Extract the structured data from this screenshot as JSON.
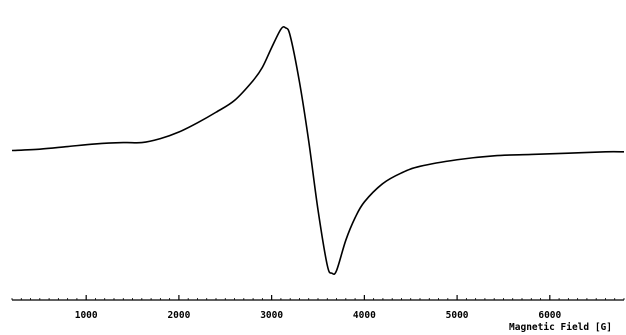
{
  "chart_data": {
    "type": "line",
    "title": "",
    "xlabel": "Magnetic Field [G]",
    "ylabel": "",
    "xlim": [
      200,
      6800
    ],
    "ylim": [
      -1.05,
      1.05
    ],
    "x_ticks": [
      1000,
      2000,
      3000,
      4000,
      5000,
      6000
    ],
    "x_tick_labels": [
      "1000",
      "2000",
      "3000",
      "4000",
      "5000",
      "6000"
    ],
    "y_axis_visible": false,
    "grid": false,
    "legend": "none",
    "series": [
      {
        "x": [
          200,
          500,
          800,
          1100,
          1400,
          1600,
          1800,
          2000,
          2200,
          2400,
          2600,
          2800,
          2900,
          3000,
          3100,
          3150,
          3200,
          3300,
          3400,
          3500,
          3600,
          3650,
          3700,
          3800,
          3900,
          4000,
          4200,
          4400,
          4600,
          5000,
          5400,
          5800,
          6200,
          6600,
          6800
        ],
        "y": [
          0.0,
          0.01,
          0.03,
          0.05,
          0.06,
          0.06,
          0.09,
          0.14,
          0.21,
          0.29,
          0.38,
          0.53,
          0.63,
          0.78,
          0.92,
          0.93,
          0.87,
          0.52,
          0.07,
          -0.45,
          -0.87,
          -0.93,
          -0.91,
          -0.68,
          -0.51,
          -0.39,
          -0.25,
          -0.17,
          -0.12,
          -0.07,
          -0.04,
          -0.03,
          -0.02,
          -0.01,
          -0.01
        ]
      }
    ]
  },
  "colors": {
    "line": "#000000",
    "axis": "#000000",
    "background": "#ffffff"
  }
}
